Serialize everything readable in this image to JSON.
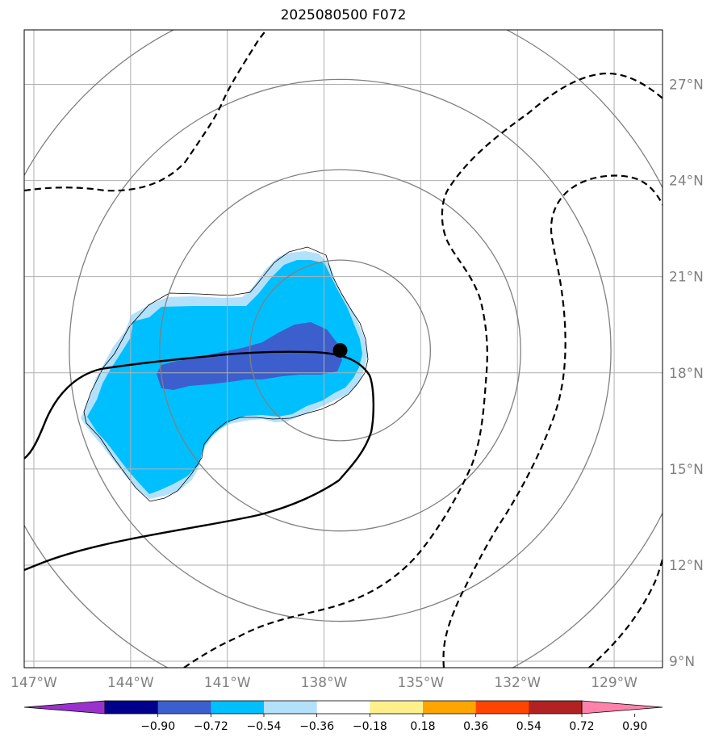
{
  "title": "2025080500 F072",
  "map": {
    "lon_range": [
      -147.3,
      -127.5
    ],
    "lat_range": [
      8.8,
      28.7
    ],
    "lat_ticks": [
      {
        "value": 9,
        "label": "9°N"
      },
      {
        "value": 12,
        "label": "12°N"
      },
      {
        "value": 15,
        "label": "15°N"
      },
      {
        "value": 18,
        "label": "18°N"
      },
      {
        "value": 21,
        "label": "21°N"
      },
      {
        "value": 24,
        "label": "24°N"
      },
      {
        "value": 27,
        "label": "27°N"
      }
    ],
    "lon_ticks": [
      {
        "value": -147,
        "label": "147°W"
      },
      {
        "value": -144,
        "label": "144°W"
      },
      {
        "value": -141,
        "label": "141°W"
      },
      {
        "value": -138,
        "label": "138°W"
      },
      {
        "value": -135,
        "label": "135°W"
      },
      {
        "value": -132,
        "label": "132°W"
      },
      {
        "value": -129,
        "label": "129°W"
      }
    ],
    "grid": true,
    "storm_center": {
      "lon": -137.5,
      "lat": 18.7
    },
    "range_rings_deg": [
      2.8,
      5.6,
      8.4,
      11.2
    ],
    "colors": {
      "light_blue": "#b3e1fb",
      "deep_sky_blue": "#00bfff",
      "royal_blue": "#3c5fcd",
      "ring": "#808080",
      "grid": "#b0b0b0"
    }
  },
  "colorbar": {
    "colors": [
      "#9932cc",
      "#00008b",
      "#3c5fcd",
      "#00bfff",
      "#b3e1fb",
      "#ffffff",
      "#fff08c",
      "#ffa500",
      "#ff4500",
      "#b22222",
      "#ff82ab"
    ],
    "ticks": [
      "−0.90",
      "−0.72",
      "−0.54",
      "−0.36",
      "−0.18",
      "0.18",
      "0.36",
      "0.54",
      "0.72",
      "0.90"
    ]
  }
}
